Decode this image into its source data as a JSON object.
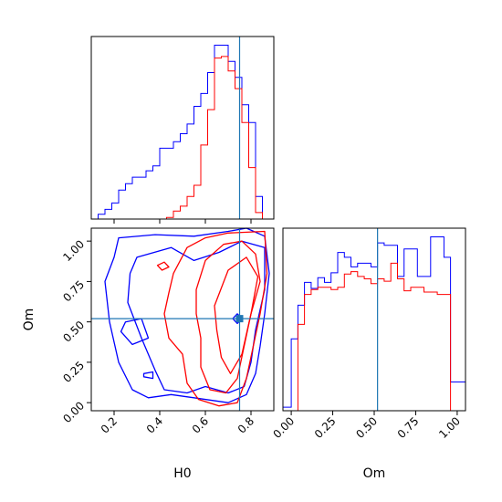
{
  "chart_data": [
    {
      "type": "histogram",
      "panel": "top-left",
      "parameter": "H0",
      "xlim": [
        0.1,
        0.9
      ],
      "x_ticks": [
        0.2,
        0.4,
        0.6,
        0.8
      ],
      "truth": 0.75,
      "truth_color": "#1f77b4",
      "bin_edges": [
        0.1,
        0.13,
        0.16,
        0.19,
        0.22,
        0.25,
        0.28,
        0.31,
        0.34,
        0.37,
        0.4,
        0.43,
        0.46,
        0.49,
        0.52,
        0.55,
        0.58,
        0.61,
        0.64,
        0.67,
        0.7,
        0.73,
        0.76,
        0.79,
        0.82,
        0.85,
        0.88
      ],
      "series": [
        {
          "color": "#0000ff",
          "values": [
            0,
            3,
            6,
            10,
            18,
            22,
            26,
            26,
            30,
            33,
            44,
            44,
            48,
            53,
            59,
            70,
            78,
            91,
            108,
            108,
            98,
            88,
            71,
            60,
            14,
            0
          ]
        },
        {
          "color": "#ff0000",
          "values": [
            0,
            0,
            0,
            0,
            0,
            0,
            0,
            0,
            0,
            0,
            0,
            1,
            5,
            8,
            14,
            21,
            46,
            68,
            100,
            101,
            92,
            81,
            60,
            32,
            4,
            0
          ]
        }
      ]
    },
    {
      "type": "contour",
      "panel": "bottom-left",
      "xlabel": "H0",
      "ylabel": "Om",
      "xlim": [
        0.1,
        0.9
      ],
      "ylim": [
        -0.05,
        1.08
      ],
      "x_ticks": [
        0.2,
        0.4,
        0.6,
        0.8
      ],
      "y_ticks": [
        0.0,
        0.25,
        0.5,
        0.75,
        1.0
      ],
      "truth": {
        "x": 0.75,
        "y": 0.52
      },
      "truth_color": "#1f77b4",
      "series": [
        {
          "color": "#0000ff",
          "levels": [
            [
              [
                0.22,
                1.02
              ],
              [
                0.38,
                1.04
              ],
              [
                0.55,
                1.03
              ],
              [
                0.7,
                1.06
              ],
              [
                0.78,
                1.08
              ],
              [
                0.86,
                1.03
              ],
              [
                0.88,
                0.8
              ],
              [
                0.86,
                0.55
              ],
              [
                0.84,
                0.35
              ],
              [
                0.82,
                0.18
              ],
              [
                0.78,
                0.05
              ],
              [
                0.7,
                0.0
              ],
              [
                0.55,
                0.03
              ],
              [
                0.45,
                0.05
              ],
              [
                0.35,
                0.03
              ],
              [
                0.28,
                0.08
              ],
              [
                0.22,
                0.25
              ],
              [
                0.18,
                0.5
              ],
              [
                0.16,
                0.75
              ],
              [
                0.2,
                0.9
              ],
              [
                0.22,
                1.02
              ]
            ],
            [
              [
                0.3,
                0.9
              ],
              [
                0.45,
                0.96
              ],
              [
                0.55,
                0.88
              ],
              [
                0.66,
                0.93
              ],
              [
                0.76,
                1.0
              ],
              [
                0.86,
                0.96
              ],
              [
                0.86,
                0.7
              ],
              [
                0.82,
                0.45
              ],
              [
                0.8,
                0.25
              ],
              [
                0.77,
                0.1
              ],
              [
                0.7,
                0.06
              ],
              [
                0.6,
                0.1
              ],
              [
                0.52,
                0.06
              ],
              [
                0.42,
                0.08
              ],
              [
                0.38,
                0.2
              ],
              [
                0.32,
                0.4
              ],
              [
                0.26,
                0.62
              ],
              [
                0.27,
                0.8
              ],
              [
                0.3,
                0.9
              ]
            ],
            [
              [
                0.25,
                0.5
              ],
              [
                0.32,
                0.52
              ],
              [
                0.35,
                0.4
              ],
              [
                0.28,
                0.36
              ],
              [
                0.23,
                0.44
              ],
              [
                0.25,
                0.5
              ]
            ],
            [
              [
                0.33,
                0.18
              ],
              [
                0.37,
                0.19
              ],
              [
                0.37,
                0.15
              ],
              [
                0.33,
                0.16
              ],
              [
                0.33,
                0.18
              ]
            ],
            [
              [
                0.72,
                0.52
              ],
              [
                0.74,
                0.55
              ],
              [
                0.76,
                0.52
              ],
              [
                0.74,
                0.49
              ],
              [
                0.72,
                0.52
              ]
            ]
          ]
        },
        {
          "color": "#ff0000",
          "levels": [
            [
              [
                0.46,
                0.8
              ],
              [
                0.52,
                0.96
              ],
              [
                0.6,
                1.02
              ],
              [
                0.7,
                1.05
              ],
              [
                0.86,
                1.06
              ],
              [
                0.87,
                0.8
              ],
              [
                0.84,
                0.55
              ],
              [
                0.81,
                0.35
              ],
              [
                0.78,
                0.15
              ],
              [
                0.74,
                0.0
              ],
              [
                0.66,
                -0.02
              ],
              [
                0.57,
                0.02
              ],
              [
                0.52,
                0.12
              ],
              [
                0.5,
                0.3
              ],
              [
                0.44,
                0.4
              ],
              [
                0.42,
                0.55
              ],
              [
                0.44,
                0.68
              ],
              [
                0.46,
                0.8
              ]
            ],
            [
              [
                0.56,
                0.7
              ],
              [
                0.6,
                0.88
              ],
              [
                0.68,
                0.98
              ],
              [
                0.76,
                1.0
              ],
              [
                0.82,
                0.92
              ],
              [
                0.84,
                0.75
              ],
              [
                0.8,
                0.55
              ],
              [
                0.77,
                0.35
              ],
              [
                0.74,
                0.15
              ],
              [
                0.69,
                0.06
              ],
              [
                0.62,
                0.08
              ],
              [
                0.58,
                0.22
              ],
              [
                0.58,
                0.4
              ],
              [
                0.56,
                0.55
              ],
              [
                0.56,
                0.7
              ]
            ],
            [
              [
                0.64,
                0.6
              ],
              [
                0.7,
                0.82
              ],
              [
                0.78,
                0.9
              ],
              [
                0.83,
                0.78
              ],
              [
                0.8,
                0.55
              ],
              [
                0.76,
                0.3
              ],
              [
                0.71,
                0.18
              ],
              [
                0.67,
                0.28
              ],
              [
                0.65,
                0.45
              ],
              [
                0.64,
                0.6
              ]
            ],
            [
              [
                0.39,
                0.85
              ],
              [
                0.42,
                0.87
              ],
              [
                0.44,
                0.84
              ],
              [
                0.41,
                0.82
              ],
              [
                0.39,
                0.85
              ]
            ]
          ]
        }
      ]
    },
    {
      "type": "histogram",
      "panel": "bottom-right",
      "parameter": "Om",
      "xlabel": "Om",
      "xlim": [
        -0.05,
        1.05
      ],
      "x_ticks": [
        0.0,
        0.25,
        0.5,
        0.75,
        1.0
      ],
      "truth": 0.52,
      "truth_color": "#1f77b4",
      "bin_edges": [
        -0.05,
        0.0,
        0.04,
        0.08,
        0.12,
        0.16,
        0.2,
        0.24,
        0.28,
        0.32,
        0.36,
        0.4,
        0.44,
        0.48,
        0.52,
        0.56,
        0.6,
        0.64,
        0.68,
        0.72,
        0.76,
        0.8,
        0.84,
        0.88,
        0.92,
        0.96,
        1.0,
        1.05
      ],
      "series": [
        {
          "color": "#0000ff",
          "values": [
            3,
            60,
            88,
            107,
            102,
            111,
            107,
            115,
            132,
            128,
            120,
            123,
            123,
            120,
            140,
            138,
            138,
            112,
            135,
            135,
            112,
            112,
            145,
            145,
            128,
            24,
            24
          ]
        },
        {
          "color": "#ff0000",
          "values": [
            0,
            0,
            72,
            97,
            101,
            103,
            103,
            101,
            103,
            114,
            116,
            112,
            110,
            106,
            110,
            108,
            123,
            110,
            100,
            103,
            103,
            99,
            99,
            97,
            97,
            0,
            0
          ]
        }
      ]
    }
  ]
}
